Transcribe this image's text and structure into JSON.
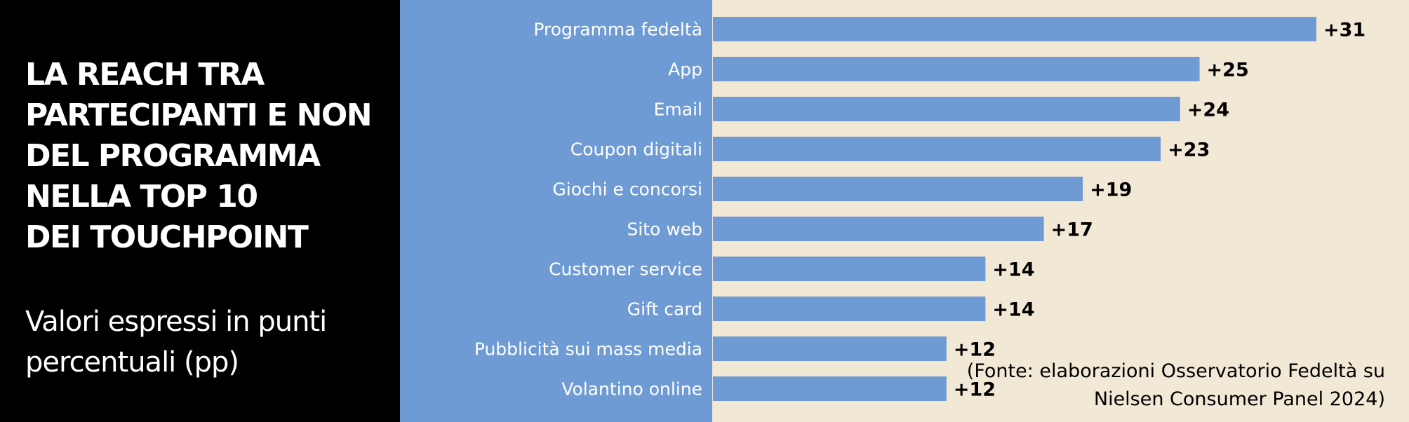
{
  "title": "LA REACH TRA\nPARTECIPANTI E NON\nDEL PROGRAMMA\nNELLA TOP 10\nDEI TOUCHPOINT",
  "subtitle": "Valori espressi in punti\npercentuali (pp)",
  "source": "(Fonte: elaborazioni Osservatorio Fedeltà su\nNielsen Consumer Panel 2024)",
  "colors": {
    "bar": "#6e9bd3",
    "plot_background": "#f2e8d6",
    "title_panel": "#000000",
    "category_label": "#ffffff",
    "value_label": "#000000"
  },
  "chart_data": {
    "type": "bar",
    "orientation": "horizontal",
    "categories": [
      "Programma fedeltà",
      "App",
      "Email",
      "Coupon digitali",
      "Giochi e concorsi",
      "Sito web",
      "Customer service",
      "Gift card",
      "Pubblicità sui mass media",
      "Volantino online"
    ],
    "values": [
      31,
      25,
      24,
      23,
      19,
      17,
      14,
      14,
      12,
      12
    ],
    "value_labels": [
      "+31",
      "+25",
      "+24",
      "+23",
      "+19",
      "+17",
      "+14",
      "+14",
      "+12",
      "+12"
    ],
    "xlim": [
      0,
      31
    ],
    "grid": false,
    "legend": "none"
  }
}
